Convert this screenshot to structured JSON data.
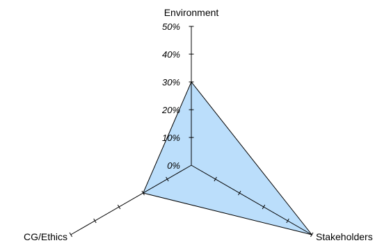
{
  "chart_data": {
    "type": "radar",
    "axes": [
      "Environment",
      "Stakeholders",
      "CG/Ethics"
    ],
    "radial_ticks": [
      "0%",
      "10%",
      "20%",
      "30%",
      "40%",
      "50%"
    ],
    "range": [
      0,
      50
    ],
    "series": [
      {
        "values": [
          30,
          50,
          20
        ]
      }
    ],
    "legend": "none",
    "grid": false
  },
  "colors": {
    "fill": "#bbdefb",
    "stroke": "#000000"
  }
}
